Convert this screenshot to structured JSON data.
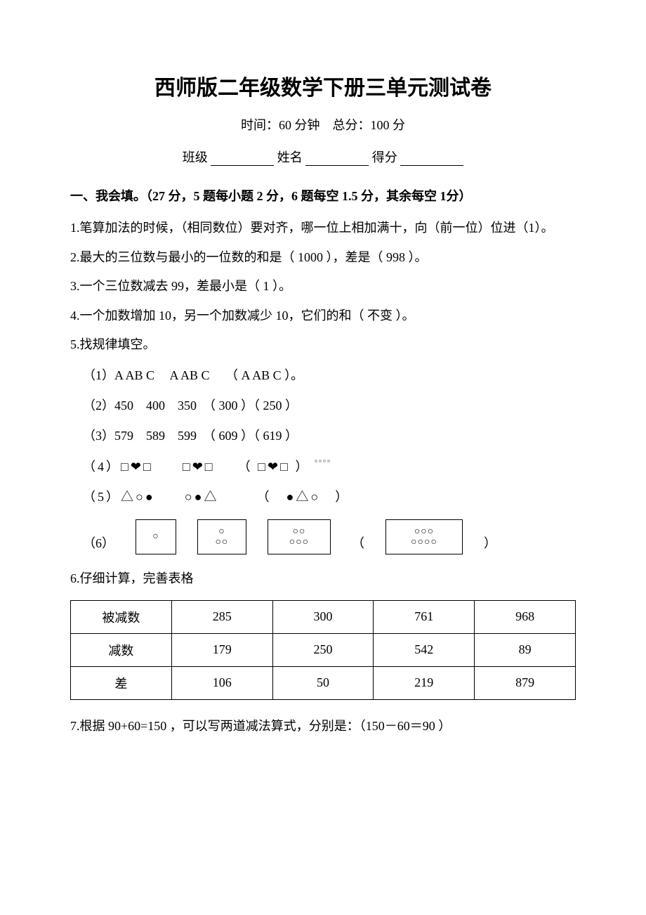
{
  "title": "西师版二年级数学下册三单元测试卷",
  "meta": "时间：60 分钟　总分：100 分",
  "info": {
    "class_label": "班级",
    "name_label": "姓名",
    "score_label": "得分"
  },
  "section1": {
    "header": "一、我会填。（27 分，5 题每小题 2 分，6 题每空 1.5 分，其余每空 1分）",
    "q1": "1.笔算加法的时候，（相同数位）要对齐，哪一位上相加满十，向（前一位）位进（1）。",
    "q2": "2.最大的三位数与最小的一位数的和是（ 1000 ），差是（ 998 ）。",
    "q3": "3.一个三位数减去 99，差最小是（ 1 ）。",
    "q4": "4.一个加数增加 10，另一个加数减少 10，它们的和（ 不变 ）。",
    "q5_intro": "5.找规律填空。",
    "q5_1": "（1）A AB C　 A AB C　 （ A AB C ）。",
    "q5_2": "（2）450　400　350　（ 300 ）（ 250 ）",
    "q5_3": "（3）579　589　599　（ 609 ）（ 619 ）",
    "q5_4": "（4）□❤□　　□❤□　　（ □❤□ ）",
    "q5_5": "（5）△○●　　○●△　　　（　●△○　）",
    "q5_6_label": "（6）",
    "q5_6_boxes": [
      [
        "○"
      ],
      [
        "○",
        "○○"
      ],
      [
        "○○",
        "○○○"
      ],
      [
        "○○○",
        "○○○○"
      ]
    ],
    "q6_intro": "6.仔细计算，完善表格",
    "q6_table": {
      "row_headers": [
        "被减数",
        "减数",
        "差"
      ],
      "cols": [
        [
          "285",
          "179",
          "106"
        ],
        [
          "300",
          "250",
          "50"
        ],
        [
          "761",
          "542",
          "219"
        ],
        [
          "968",
          "89",
          "879"
        ]
      ]
    },
    "q7": "7.根据 90+60=150 ，可以写两道减法算式，分别是：（150－60＝90 ）"
  },
  "colors": {
    "text": "#000000",
    "background": "#ffffff",
    "border": "#000000"
  },
  "typography": {
    "title_fontsize": 30,
    "body_fontsize": 18,
    "font_family": "SimSun"
  }
}
